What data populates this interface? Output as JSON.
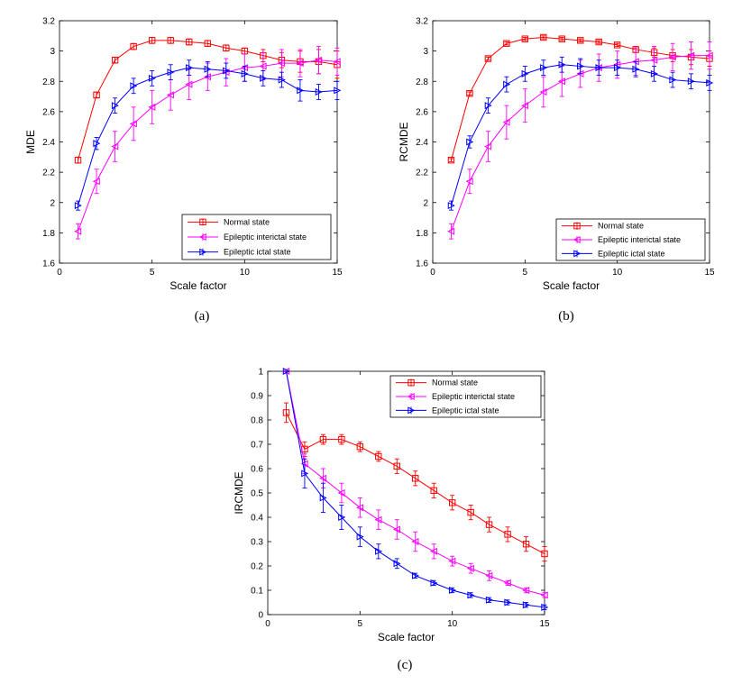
{
  "figure": {
    "series_names": [
      "Normal state",
      "Epileptic interictal state",
      "Epileptic ictal state"
    ],
    "colors": {
      "normal": "#ff0000",
      "interictal": "#ff00ff",
      "ictal": "#0000ff"
    }
  },
  "chart_data": [
    {
      "type": "line",
      "caption": "(a)",
      "xlabel": "Scale factor",
      "ylabel": "MDE",
      "xlim": [
        0,
        15
      ],
      "ylim": [
        1.6,
        3.2
      ],
      "xticks": [
        0,
        5,
        10,
        15
      ],
      "yticks": [
        1.6,
        1.8,
        2.0,
        2.2,
        2.4,
        2.6,
        2.8,
        3.0,
        3.2
      ],
      "ytick_labels": [
        "1.6",
        "1.8",
        "2",
        "2.2",
        "2.4",
        "2.6",
        "2.8",
        "3",
        "3.2"
      ],
      "x": [
        1,
        2,
        3,
        4,
        5,
        6,
        7,
        8,
        9,
        10,
        11,
        12,
        13,
        14,
        15
      ],
      "legend": "bottom-right",
      "series": [
        {
          "name": "Normal state",
          "marker": "square",
          "color": "#ff0000",
          "values": [
            2.28,
            2.71,
            2.94,
            3.03,
            3.07,
            3.07,
            3.06,
            3.05,
            3.02,
            3.0,
            2.97,
            2.94,
            2.93,
            2.93,
            2.91
          ],
          "errors": [
            0.02,
            0.02,
            0.02,
            0.02,
            0.02,
            0.02,
            0.02,
            0.02,
            0.02,
            0.02,
            0.04,
            0.05,
            0.07,
            0.08,
            0.09
          ]
        },
        {
          "name": "Epileptic interictal state",
          "marker": "triangle-left",
          "color": "#ff00ff",
          "values": [
            1.81,
            2.14,
            2.37,
            2.52,
            2.63,
            2.71,
            2.78,
            2.83,
            2.86,
            2.89,
            2.9,
            2.92,
            2.92,
            2.94,
            2.93
          ],
          "errors": [
            0.05,
            0.08,
            0.1,
            0.11,
            0.11,
            0.1,
            0.1,
            0.09,
            0.09,
            0.09,
            0.09,
            0.09,
            0.09,
            0.09,
            0.09
          ]
        },
        {
          "name": "Epileptic ictal state",
          "marker": "triangle-right",
          "color": "#0000ff",
          "values": [
            1.98,
            2.39,
            2.64,
            2.77,
            2.82,
            2.86,
            2.89,
            2.88,
            2.87,
            2.85,
            2.82,
            2.81,
            2.74,
            2.73,
            2.74
          ],
          "errors": [
            0.03,
            0.04,
            0.05,
            0.05,
            0.05,
            0.05,
            0.05,
            0.05,
            0.05,
            0.05,
            0.05,
            0.05,
            0.07,
            0.05,
            0.06
          ]
        }
      ]
    },
    {
      "type": "line",
      "caption": "(b)",
      "xlabel": "Scale factor",
      "ylabel": "RCMDE",
      "xlim": [
        0,
        15
      ],
      "ylim": [
        1.6,
        3.2
      ],
      "xticks": [
        0,
        5,
        10,
        15
      ],
      "yticks": [
        1.6,
        1.8,
        2.0,
        2.2,
        2.4,
        2.6,
        2.8,
        3.0,
        3.2
      ],
      "ytick_labels": [
        "1.6",
        "1.8",
        "2",
        "2.2",
        "2.4",
        "2.6",
        "2.8",
        "3",
        "3.2"
      ],
      "x": [
        1,
        2,
        3,
        4,
        5,
        6,
        7,
        8,
        9,
        10,
        11,
        12,
        13,
        14,
        15
      ],
      "legend": "bottom-right",
      "series": [
        {
          "name": "Normal state",
          "marker": "square",
          "color": "#ff0000",
          "values": [
            2.28,
            2.72,
            2.95,
            3.05,
            3.08,
            3.09,
            3.08,
            3.07,
            3.06,
            3.04,
            3.01,
            2.99,
            2.97,
            2.96,
            2.95
          ],
          "errors": [
            0.01,
            0.01,
            0.01,
            0.01,
            0.01,
            0.01,
            0.01,
            0.01,
            0.01,
            0.01,
            0.02,
            0.03,
            0.04,
            0.05,
            0.05
          ]
        },
        {
          "name": "Epileptic interictal state",
          "marker": "triangle-left",
          "color": "#ff00ff",
          "values": [
            1.81,
            2.14,
            2.37,
            2.53,
            2.64,
            2.73,
            2.8,
            2.85,
            2.89,
            2.91,
            2.93,
            2.94,
            2.96,
            2.97,
            2.97
          ],
          "errors": [
            0.05,
            0.08,
            0.1,
            0.11,
            0.11,
            0.1,
            0.1,
            0.09,
            0.09,
            0.09,
            0.09,
            0.09,
            0.09,
            0.09,
            0.09
          ]
        },
        {
          "name": "Epileptic ictal state",
          "marker": "triangle-right",
          "color": "#0000ff",
          "values": [
            1.98,
            2.4,
            2.64,
            2.78,
            2.85,
            2.89,
            2.91,
            2.9,
            2.89,
            2.89,
            2.88,
            2.85,
            2.81,
            2.8,
            2.79
          ],
          "errors": [
            0.03,
            0.04,
            0.05,
            0.05,
            0.05,
            0.05,
            0.05,
            0.05,
            0.05,
            0.05,
            0.05,
            0.05,
            0.05,
            0.05,
            0.05
          ]
        }
      ]
    },
    {
      "type": "line",
      "caption": "(c)",
      "xlabel": "Scale factor",
      "ylabel": "IRCMDE",
      "xlim": [
        0,
        15
      ],
      "ylim": [
        0,
        1
      ],
      "xticks": [
        0,
        5,
        10,
        15
      ],
      "yticks": [
        0,
        0.1,
        0.2,
        0.3,
        0.4,
        0.5,
        0.6,
        0.7,
        0.8,
        0.9,
        1.0
      ],
      "ytick_labels": [
        "0",
        "0.1",
        "0.2",
        "0.3",
        "0.4",
        "0.5",
        "0.6",
        "0.7",
        "0.8",
        "0.9",
        "1"
      ],
      "x": [
        1,
        2,
        3,
        4,
        5,
        6,
        7,
        8,
        9,
        10,
        11,
        12,
        13,
        14,
        15
      ],
      "legend": "top-right",
      "series": [
        {
          "name": "Normal state",
          "marker": "square",
          "color": "#ff0000",
          "values": [
            0.83,
            0.68,
            0.72,
            0.72,
            0.69,
            0.65,
            0.61,
            0.56,
            0.51,
            0.46,
            0.42,
            0.37,
            0.33,
            0.29,
            0.25
          ],
          "errors": [
            0.04,
            0.03,
            0.02,
            0.02,
            0.02,
            0.02,
            0.03,
            0.03,
            0.03,
            0.03,
            0.03,
            0.03,
            0.03,
            0.03,
            0.03
          ]
        },
        {
          "name": "Epileptic interictal state",
          "marker": "triangle-left",
          "color": "#ff00ff",
          "values": [
            1.0,
            0.62,
            0.56,
            0.5,
            0.44,
            0.39,
            0.35,
            0.3,
            0.26,
            0.22,
            0.19,
            0.16,
            0.13,
            0.1,
            0.08
          ],
          "errors": [
            0.0,
            0.04,
            0.04,
            0.04,
            0.04,
            0.04,
            0.04,
            0.04,
            0.03,
            0.02,
            0.02,
            0.02,
            0.01,
            0.01,
            0.01
          ]
        },
        {
          "name": "Epileptic ictal state",
          "marker": "triangle-right",
          "color": "#0000ff",
          "values": [
            1.0,
            0.58,
            0.48,
            0.4,
            0.32,
            0.26,
            0.21,
            0.16,
            0.13,
            0.1,
            0.08,
            0.06,
            0.05,
            0.04,
            0.03
          ],
          "errors": [
            0.0,
            0.06,
            0.06,
            0.05,
            0.04,
            0.03,
            0.02,
            0.01,
            0.01,
            0.01,
            0.01,
            0.01,
            0.01,
            0.01,
            0.01
          ]
        }
      ]
    }
  ]
}
